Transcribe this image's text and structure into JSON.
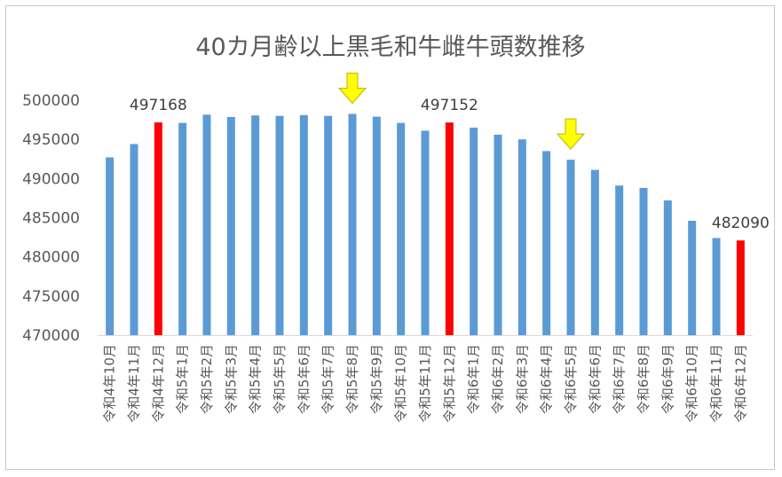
{
  "chart_data": {
    "type": "bar",
    "title": "40カ月齢以上黒毛和牛雌牛頭数推移",
    "xlabel": "",
    "ylabel": "",
    "ylim": [
      470000,
      500000
    ],
    "yticks": [
      470000,
      475000,
      480000,
      485000,
      490000,
      495000,
      500000
    ],
    "grid": false,
    "legend": "none",
    "categories": [
      "令和4年10月",
      "令和4年11月",
      "令和4年12月",
      "令和5年1月",
      "令和5年2月",
      "令和5年3月",
      "令和5年4月",
      "令和5年5月",
      "令和5年6月",
      "令和5年7月",
      "令和5年8月",
      "令和5年9月",
      "令和5年10月",
      "令和5年11月",
      "令和5年12月",
      "令和6年1月",
      "令和6年2月",
      "令和6年3月",
      "令和6年4月",
      "令和6年5月",
      "令和6年6月",
      "令和6年7月",
      "令和6年8月",
      "令和6年9月",
      "令和6年10月",
      "令和6年11月",
      "令和6年12月"
    ],
    "values": [
      492700,
      494400,
      497168,
      497100,
      498150,
      497850,
      498050,
      498000,
      498100,
      498000,
      498250,
      497900,
      497100,
      496100,
      497152,
      496500,
      495600,
      495000,
      493500,
      492400,
      491100,
      489100,
      488800,
      487200,
      484600,
      482400,
      482090
    ],
    "bar_colors": [
      "#5b9bd5",
      "#5b9bd5",
      "#ff0000",
      "#5b9bd5",
      "#5b9bd5",
      "#5b9bd5",
      "#5b9bd5",
      "#5b9bd5",
      "#5b9bd5",
      "#5b9bd5",
      "#5b9bd5",
      "#5b9bd5",
      "#5b9bd5",
      "#5b9bd5",
      "#ff0000",
      "#5b9bd5",
      "#5b9bd5",
      "#5b9bd5",
      "#5b9bd5",
      "#5b9bd5",
      "#5b9bd5",
      "#5b9bd5",
      "#5b9bd5",
      "#5b9bd5",
      "#5b9bd5",
      "#5b9bd5",
      "#ff0000"
    ],
    "data_labels": [
      {
        "index": 2,
        "text": "497168"
      },
      {
        "index": 14,
        "text": "497152"
      },
      {
        "index": 26,
        "text": "482090"
      }
    ],
    "arrows": [
      {
        "index": 10,
        "icon": "arrow-down-icon",
        "color": "#ffff00"
      },
      {
        "index": 19,
        "icon": "arrow-down-icon",
        "color": "#ffff00"
      }
    ],
    "axis_color": "#d9d9d9"
  }
}
